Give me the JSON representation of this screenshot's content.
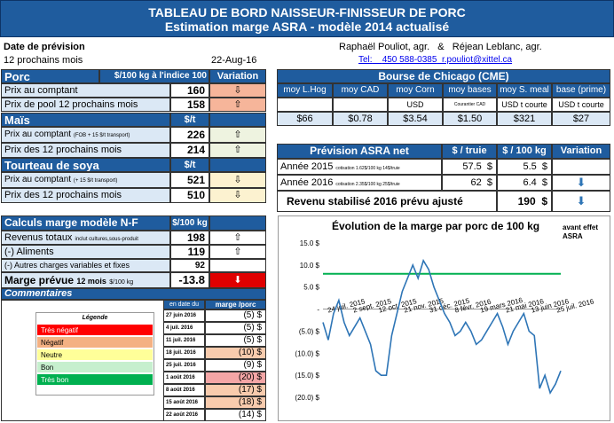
{
  "header": {
    "title_line1": "TABLEAU DE BORD NAISSEUR-FINISSEUR DE PORC",
    "title_line2": "Estimation marge ASRA - modèle 2014 actualisé"
  },
  "info": {
    "date_label": "Date de prévision",
    "period_label": "12 prochains mois",
    "date_value": "22-Aug-16",
    "authors": "Raphaël Pouliot, agr.   &   Réjean Leblanc, agr.",
    "tel_label": "Tel:",
    "tel_value": "450 588-0385",
    "email": "r.pouliot@xittel.ca"
  },
  "porc": {
    "title": "Porc",
    "unit": "$/100 kg à l'indice 100",
    "variation": "Variation",
    "rows": [
      {
        "label": "Prix au comptant",
        "value": "160",
        "arrow": "⇩"
      },
      {
        "label": "Prix de pool 12 prochains mois",
        "value": "158",
        "arrow": "⇧"
      }
    ]
  },
  "mais": {
    "title": "Maïs",
    "unit": "$/t",
    "rows": [
      {
        "label": "Prix au comptant",
        "note": "(FOB + 15 $/t transport)",
        "value": "226",
        "arrow": "⇧"
      },
      {
        "label": "Prix des 12 prochains mois",
        "value": "214",
        "arrow": "⇧"
      }
    ]
  },
  "soya": {
    "title": "Tourteau de soya",
    "unit": "$/t",
    "rows": [
      {
        "label": "Prix au comptant",
        "note": "(+ 15 $/t transport)",
        "value": "521",
        "arrow": "⇩"
      },
      {
        "label": "Prix des 12 prochains mois",
        "value": "510",
        "arrow": "⇩"
      }
    ]
  },
  "chicago": {
    "title": "Bourse de Chicago (CME)",
    "headers": [
      "moy L.Hog",
      "moy CAD",
      "moy Corn",
      "moy bases",
      "moy S. meal",
      "base (prime)"
    ],
    "units": [
      "",
      "",
      "USD",
      "Courantier CAD",
      "USD t courte",
      "USD t courte"
    ],
    "values": [
      "$66",
      "$0.78",
      "$3.54",
      "$1.50",
      "$321",
      "$27"
    ]
  },
  "asra": {
    "title": "Prévision ASRA net",
    "col1": "$ / truie",
    "col2": "$ / 100 kg",
    "col3": "Variation",
    "rows": [
      {
        "label": "Année 2015",
        "note": "cotisation 1.62$/100 kg 14$/truie",
        "truie": "57.5",
        "kg": "5.5",
        "arrow": ""
      },
      {
        "label": "Année 2016",
        "note": "cotisation 2.35$/100 kg 25$/truie",
        "truie": "62",
        "kg": "6.4",
        "arrow": "⬇"
      }
    ],
    "dollar": "$",
    "total_label": "Revenu stabilisé 2016 prévu ajusté",
    "total_value": "190",
    "total_arrow": "⬇"
  },
  "calculs": {
    "title": "Calculs marge  modèle N-F",
    "unit": "$/100 kg",
    "rev_label": "Revenus totaux",
    "rev_note": "inclut cultures,sous-produit",
    "rev_value": "198",
    "rev_arrow": "⇧",
    "alim_label": "(-) Aliments",
    "alim_value": "119",
    "alim_arrow": "⇧",
    "autres_label": "(-) Autres charges variables et fixes",
    "autres_value": "92",
    "marge_label": "Marge prévue",
    "marge_sub": "12 mois",
    "marge_unit": "$/100 kg",
    "marge_value": "-13.8",
    "marge_arrow": "⬇",
    "comments": "Commentaires"
  },
  "legend": {
    "title": "Légende",
    "items": [
      {
        "label": "Très négatif",
        "color": "#ff0000"
      },
      {
        "label": "Négatif",
        "color": "#f4b183"
      },
      {
        "label": "Neutre",
        "color": "#ffff99"
      },
      {
        "label": "Bon",
        "color": "#c6efce"
      },
      {
        "label": "Très bon",
        "color": "#00b050"
      }
    ]
  },
  "history": {
    "col_date": "en date du",
    "col_marge": "marge /porc",
    "rows": [
      {
        "date": "27 juin 2016",
        "value": "(5) $",
        "color": "#ffffff"
      },
      {
        "date": "4 juil. 2016",
        "value": "(5) $",
        "color": "#ffffff"
      },
      {
        "date": "11 juil. 2016",
        "value": "(5) $",
        "color": "#ffffff"
      },
      {
        "date": "18 juil. 2016",
        "value": "(10) $",
        "color": "#f8cbad"
      },
      {
        "date": "25 juil. 2016",
        "value": "(9) $",
        "color": "#ffffff"
      },
      {
        "date": "1 août 2016",
        "value": "(20) $",
        "color": "#f4a6a6"
      },
      {
        "date": "8 août 2016",
        "value": "(17) $",
        "color": "#f8cbad"
      },
      {
        "date": "15 août 2016",
        "value": "(18) $",
        "color": "#f8cbad"
      },
      {
        "date": "22 août 2016",
        "value": "(14) $",
        "color": "#ffffff"
      }
    ]
  },
  "chart_data": {
    "type": "line",
    "title": "Évolution de la marge par porc de 100 kg",
    "title_note": "avant effet ASRA",
    "ylim": [
      -20,
      15
    ],
    "yticks": [
      "15.0 $",
      "10.0 $",
      "5.0 $",
      "-",
      "(5.0) $",
      "(10.0) $",
      "(15.0) $",
      "(20.0) $"
    ],
    "ytick_values": [
      15,
      10,
      5,
      0,
      -5,
      -10,
      -15,
      -20
    ],
    "xticks": [
      "24 juil. 2015",
      "2 sept. 2015",
      "12 oct. 2015",
      "21 nov. 2015",
      "31 déc. 2015",
      "8 févr. 2016",
      "19 mars 2016",
      "21 mai 2016",
      "13 juin 2016",
      "25 juil. 2016"
    ],
    "reference_line": 8,
    "series": [
      {
        "values": [
          -3,
          -7,
          -1,
          2,
          -3,
          -6,
          -4,
          -2,
          -5,
          -8,
          -14,
          -15,
          -15,
          -6,
          -1,
          4,
          7,
          10,
          7,
          11,
          9,
          5,
          2,
          -1,
          -3,
          -6,
          -5,
          -3,
          -5,
          -8,
          -7,
          -5,
          -3,
          -1,
          -4,
          -8,
          -5,
          -3,
          -1,
          -5,
          -6,
          -18,
          -15,
          -19,
          -17,
          -14
        ]
      }
    ],
    "colors": {
      "line": "#2e75b6",
      "reference": "#00b050"
    }
  }
}
